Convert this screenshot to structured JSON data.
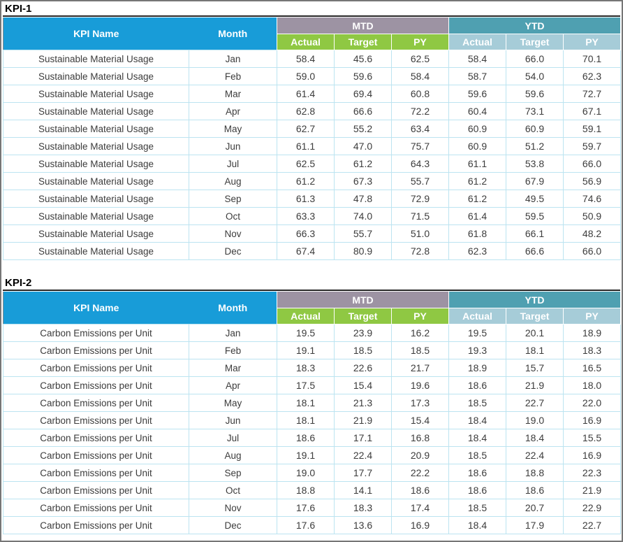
{
  "colors": {
    "header_blue": "#189CD8",
    "mtd_band": "#9D93A3",
    "mtd_sub": "#8FC843",
    "ytd_band": "#4FA0B1",
    "ytd_sub": "#A6CCD8",
    "cell_border": "#BCE4F1",
    "text_dark": "#3C3C3C"
  },
  "header": {
    "kpi_name": "KPI Name",
    "month": "Month",
    "mtd": "MTD",
    "ytd": "YTD",
    "sub": [
      "Actual",
      "Target",
      "PY"
    ]
  },
  "tables": [
    {
      "title": "KPI-1",
      "kpi_name": "Sustainable Material Usage",
      "rows": [
        {
          "month": "Jan",
          "values": [
            "58.4",
            "45.6",
            "62.5",
            "58.4",
            "66.0",
            "70.1"
          ]
        },
        {
          "month": "Feb",
          "values": [
            "59.0",
            "59.6",
            "58.4",
            "58.7",
            "54.0",
            "62.3"
          ]
        },
        {
          "month": "Mar",
          "values": [
            "61.4",
            "69.4",
            "60.8",
            "59.6",
            "59.6",
            "72.7"
          ]
        },
        {
          "month": "Apr",
          "values": [
            "62.8",
            "66.6",
            "72.2",
            "60.4",
            "73.1",
            "67.1"
          ]
        },
        {
          "month": "May",
          "values": [
            "62.7",
            "55.2",
            "63.4",
            "60.9",
            "60.9",
            "59.1"
          ]
        },
        {
          "month": "Jun",
          "values": [
            "61.1",
            "47.0",
            "75.7",
            "60.9",
            "51.2",
            "59.7"
          ]
        },
        {
          "month": "Jul",
          "values": [
            "62.5",
            "61.2",
            "64.3",
            "61.1",
            "53.8",
            "66.0"
          ]
        },
        {
          "month": "Aug",
          "values": [
            "61.2",
            "67.3",
            "55.7",
            "61.2",
            "67.9",
            "56.9"
          ]
        },
        {
          "month": "Sep",
          "values": [
            "61.3",
            "47.8",
            "72.9",
            "61.2",
            "49.5",
            "74.6"
          ]
        },
        {
          "month": "Oct",
          "values": [
            "63.3",
            "74.0",
            "71.5",
            "61.4",
            "59.5",
            "50.9"
          ]
        },
        {
          "month": "Nov",
          "values": [
            "66.3",
            "55.7",
            "51.0",
            "61.8",
            "66.1",
            "48.2"
          ]
        },
        {
          "month": "Dec",
          "values": [
            "67.4",
            "80.9",
            "72.8",
            "62.3",
            "66.6",
            "66.0"
          ]
        }
      ]
    },
    {
      "title": "KPI-2",
      "kpi_name": "Carbon Emissions per Unit",
      "rows": [
        {
          "month": "Jan",
          "values": [
            "19.5",
            "23.9",
            "16.2",
            "19.5",
            "20.1",
            "18.9"
          ]
        },
        {
          "month": "Feb",
          "values": [
            "19.1",
            "18.5",
            "18.5",
            "19.3",
            "18.1",
            "18.3"
          ]
        },
        {
          "month": "Mar",
          "values": [
            "18.3",
            "22.6",
            "21.7",
            "18.9",
            "15.7",
            "16.5"
          ]
        },
        {
          "month": "Apr",
          "values": [
            "17.5",
            "15.4",
            "19.6",
            "18.6",
            "21.9",
            "18.0"
          ]
        },
        {
          "month": "May",
          "values": [
            "18.1",
            "21.3",
            "17.3",
            "18.5",
            "22.7",
            "22.0"
          ]
        },
        {
          "month": "Jun",
          "values": [
            "18.1",
            "21.9",
            "15.4",
            "18.4",
            "19.0",
            "16.9"
          ]
        },
        {
          "month": "Jul",
          "values": [
            "18.6",
            "17.1",
            "16.8",
            "18.4",
            "18.4",
            "15.5"
          ]
        },
        {
          "month": "Aug",
          "values": [
            "19.1",
            "22.4",
            "20.9",
            "18.5",
            "22.4",
            "16.9"
          ]
        },
        {
          "month": "Sep",
          "values": [
            "19.0",
            "17.7",
            "22.2",
            "18.6",
            "18.8",
            "22.3"
          ]
        },
        {
          "month": "Oct",
          "values": [
            "18.8",
            "14.1",
            "18.6",
            "18.6",
            "18.6",
            "21.9"
          ]
        },
        {
          "month": "Nov",
          "values": [
            "17.6",
            "18.3",
            "17.4",
            "18.5",
            "20.7",
            "22.9"
          ]
        },
        {
          "month": "Dec",
          "values": [
            "17.6",
            "13.6",
            "16.9",
            "18.4",
            "17.9",
            "22.7"
          ]
        }
      ]
    }
  ]
}
